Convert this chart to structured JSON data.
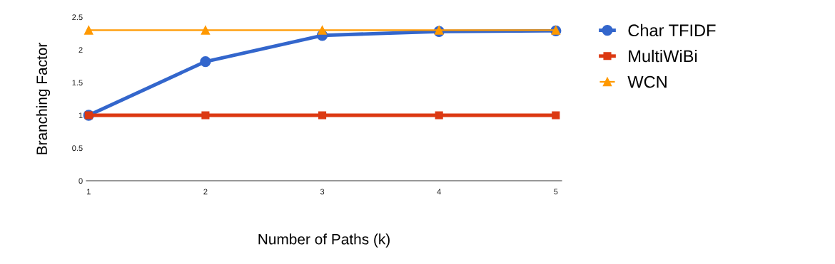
{
  "chart_data": {
    "type": "line",
    "xlabel": "Number of Paths (k)",
    "ylabel": "Branching Factor",
    "x": [
      1,
      2,
      3,
      4,
      5
    ],
    "series": [
      {
        "name": "Char TFIDF",
        "color": "#3366cc",
        "marker": "circle",
        "values": [
          1,
          1.82,
          2.22,
          2.28,
          2.29
        ]
      },
      {
        "name": "MultiWiBi",
        "color": "#dc3912",
        "marker": "square",
        "values": [
          1,
          1,
          1,
          1,
          1
        ]
      },
      {
        "name": "WCN",
        "color": "#ff9900",
        "marker": "triangle",
        "values": [
          2.3,
          2.3,
          2.3,
          2.3,
          2.3
        ]
      }
    ],
    "xlim": [
      0.98,
      5.05
    ],
    "ylim": [
      0,
      2.5
    ],
    "xticks": [
      1,
      2,
      3,
      4,
      5
    ],
    "yticks": [
      0,
      0.5,
      1,
      1.5,
      2,
      2.5
    ],
    "grid": false,
    "legend": "right"
  }
}
